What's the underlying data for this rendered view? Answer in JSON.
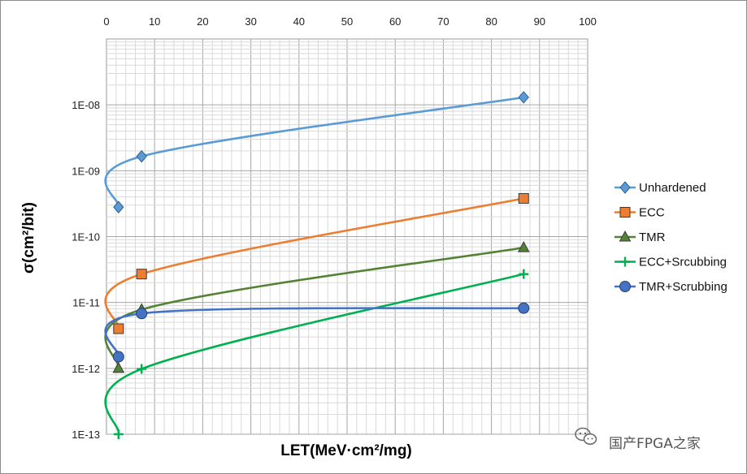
{
  "chart_data": {
    "type": "line",
    "xlabel": "LET(MeV·cm²/mg)",
    "ylabel": "σ(cm²/bit)",
    "xlim": [
      0,
      100
    ],
    "ylim": [
      1e-13,
      1e-07
    ],
    "yscale": "log",
    "x_axis_position": "top",
    "grid": true,
    "legend_position": "right",
    "x_ticks": [
      "0",
      "10",
      "20",
      "30",
      "40",
      "50",
      "60",
      "70",
      "80",
      "90",
      "100"
    ],
    "y_ticks": [
      {
        "value": 1e-08,
        "label": "1E-08"
      },
      {
        "value": 1e-09,
        "label": "1E-09"
      },
      {
        "value": 1e-10,
        "label": "1E-10"
      },
      {
        "value": 1e-11,
        "label": "1E-11"
      },
      {
        "value": 1e-12,
        "label": "1E-12"
      },
      {
        "value": 1e-13,
        "label": "1E-13"
      }
    ],
    "series": [
      {
        "name": "Unhardened",
        "color": "#5b9bd5",
        "marker": "diamond",
        "x": [
          2.5,
          7.3,
          86.7
        ],
        "y": [
          2.8e-10,
          1.65e-09,
          1.3e-08
        ]
      },
      {
        "name": "ECC",
        "color": "#ed7d31",
        "marker": "square",
        "x": [
          2.5,
          7.3,
          86.7
        ],
        "y": [
          4e-12,
          2.7e-11,
          3.8e-10
        ]
      },
      {
        "name": "TMR",
        "color": "#548235",
        "marker": "triangle",
        "x": [
          2.5,
          7.3,
          86.7
        ],
        "y": [
          1e-12,
          7.8e-12,
          6.8e-11
        ]
      },
      {
        "name": "ECC+Srcubbing",
        "color": "#00b050",
        "marker": "plus",
        "x": [
          2.5,
          7.3,
          86.7
        ],
        "y": [
          1e-13,
          9.8e-13,
          2.7e-11
        ]
      },
      {
        "name": "TMR+Scrubbing",
        "color": "#4472c4",
        "marker": "circle",
        "x": [
          2.5,
          7.3,
          86.7
        ],
        "y": [
          1.5e-12,
          6.8e-12,
          8.2e-12
        ]
      }
    ]
  },
  "watermark": {
    "icon": "wechat-icon",
    "text": "国产FPGA之家"
  }
}
